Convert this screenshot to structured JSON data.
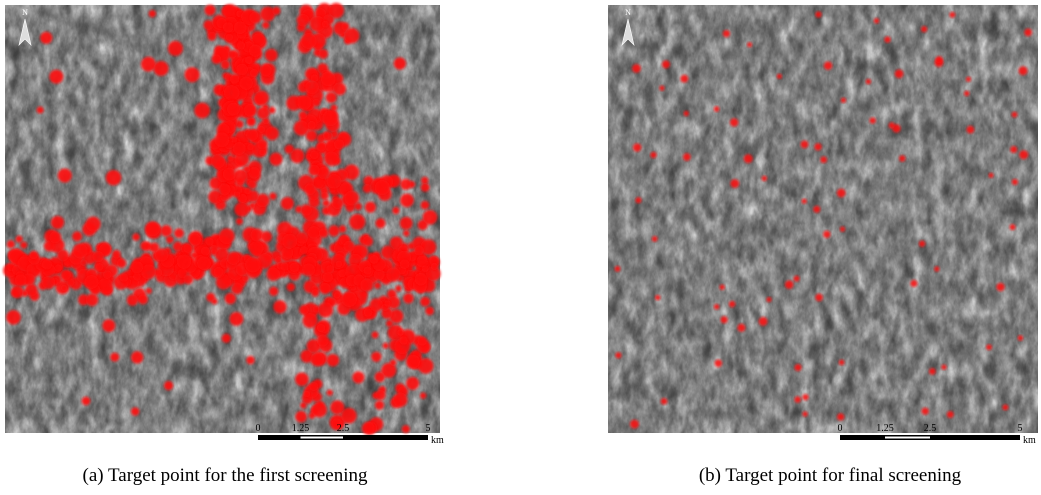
{
  "panels": [
    {
      "caption": "(a) Target point for the first screening",
      "north": "N",
      "scale": {
        "ticks": [
          "0",
          "1.25",
          "2.5",
          "5"
        ],
        "unit": "km"
      }
    },
    {
      "caption": "(b) Target point for final screening",
      "north": "N",
      "scale": {
        "ticks": [
          "0",
          "1.25",
          "2.5",
          "5"
        ],
        "unit": "km"
      }
    }
  ]
}
